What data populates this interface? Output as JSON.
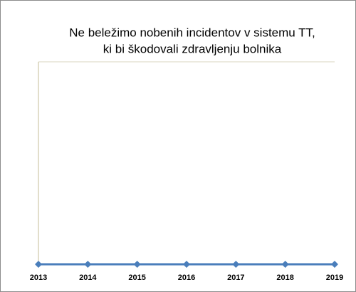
{
  "chart_data": {
    "type": "line",
    "title": [
      "Ne beležimo nobenih incidentov v sistemu TT,",
      "ki bi škodovali zdravljenju bolnika"
    ],
    "categories": [
      "2013",
      "2014",
      "2015",
      "2016",
      "2017",
      "2018",
      "2019"
    ],
    "values": [
      0,
      0,
      0,
      0,
      0,
      0,
      0
    ],
    "color": "#4a7ebb",
    "ylim": [
      0,
      1
    ]
  }
}
